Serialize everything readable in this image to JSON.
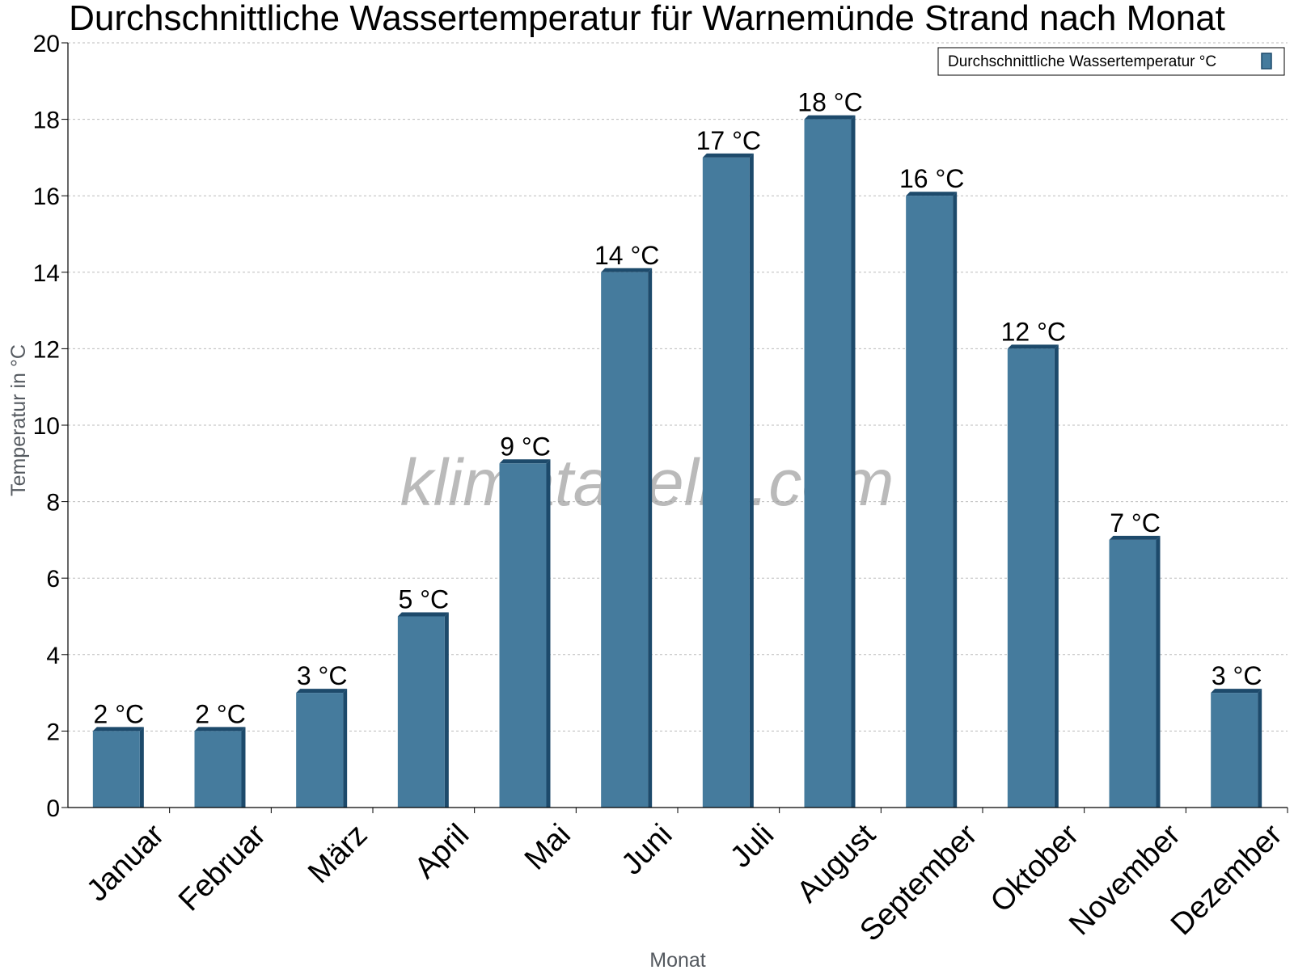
{
  "chart_data": {
    "type": "bar",
    "title": "Durchschnittliche Wassertemperatur für Warnemünde Strand nach Monat",
    "xlabel": "Monat",
    "ylabel": "Temperatur in °C",
    "categories": [
      "Januar",
      "Februar",
      "März",
      "April",
      "Mai",
      "Juni",
      "Juli",
      "August",
      "September",
      "Oktober",
      "November",
      "Dezember"
    ],
    "series": [
      {
        "name": "Durchschnittliche Wassertemperatur °C",
        "values": [
          2,
          2,
          3,
          5,
          9,
          14,
          17,
          18,
          16,
          12,
          7,
          3
        ],
        "labels": [
          "2 °C",
          "2 °C",
          "3 °C",
          "5 °C",
          "9 °C",
          "14 °C",
          "17 °C",
          "18 °C",
          "16 °C",
          "12 °C",
          "7 °C",
          "3 °C"
        ]
      }
    ],
    "ylim": [
      0,
      20
    ],
    "yticks": [
      0,
      2,
      4,
      6,
      8,
      10,
      12,
      14,
      16,
      18,
      20
    ],
    "grid": true,
    "legend": "top-right",
    "colors": {
      "bar": "#457b9d",
      "bar_edge": "#1d4a6b",
      "grid": "#bbbbbb"
    }
  },
  "watermark": "klimatabelle.com"
}
